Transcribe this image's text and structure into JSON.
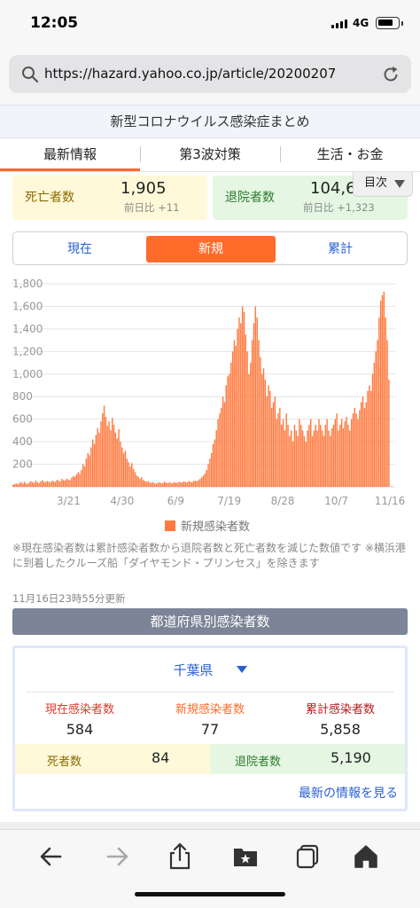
{
  "status_bar": {
    "time": "12:05",
    "network": "4G",
    "battery_level": 0.8
  },
  "browser": {
    "url": "https://hazard.yahoo.co.jp/article/20200207"
  },
  "page": {
    "title": "新型コロナウイルス感染症まとめ"
  },
  "tabs": [
    {
      "label": "最新情報",
      "active": true
    },
    {
      "label": "第3波対策",
      "active": false
    },
    {
      "label": "生活・お金",
      "active": false
    }
  ],
  "toc_button": {
    "label": "目次"
  },
  "summary": {
    "deaths": {
      "label": "死亡者数",
      "value": "1,905",
      "delta": "前日比 +11"
    },
    "recovered": {
      "label": "退院者数",
      "value": "104,65",
      "delta": "前日比 +1,323"
    }
  },
  "segment": {
    "options": [
      "現在",
      "新規",
      "累計"
    ],
    "selected": "新規"
  },
  "chart_data": {
    "type": "bar",
    "title": "",
    "ylim": [
      0,
      1800
    ],
    "yticks": [
      "1,800",
      "1,600",
      "1,400",
      "1,200",
      "1,000",
      "800",
      "600",
      "400",
      "200"
    ],
    "x_tick_labels": [
      "3/21",
      "4/30",
      "6/9",
      "7/19",
      "8/28",
      "10/7",
      "11/16"
    ],
    "x_start": "2020-02-08",
    "x_end": "2020-11-16",
    "series": [
      {
        "name": "新規感染者数",
        "color": "#ff7a40",
        "values": [
          18,
          25,
          30,
          22,
          35,
          40,
          28,
          45,
          30,
          25,
          38,
          50,
          42,
          35,
          55,
          40,
          32,
          48,
          60,
          45,
          38,
          52,
          45,
          40,
          55,
          48,
          42,
          62,
          55,
          48,
          70,
          60,
          55,
          72,
          65,
          58,
          80,
          95,
          88,
          110,
          130,
          115,
          150,
          200,
          180,
          250,
          300,
          280,
          350,
          420,
          380,
          460,
          520,
          480,
          580,
          650,
          720,
          620,
          540,
          580,
          500,
          610,
          550,
          480,
          430,
          510,
          400,
          350,
          300,
          320,
          250,
          220,
          180,
          210,
          160,
          130,
          100,
          90,
          70,
          85,
          60,
          52,
          45,
          50,
          38,
          35,
          42,
          30,
          28,
          35,
          40,
          32,
          30,
          45,
          38,
          32,
          40,
          35,
          30,
          42,
          38,
          35,
          45,
          40,
          38,
          48,
          42,
          38,
          50,
          45,
          40,
          52,
          55,
          48,
          60,
          70,
          85,
          100,
          120,
          150,
          200,
          250,
          300,
          380,
          420,
          500,
          600,
          650,
          700,
          800,
          750,
          900,
          980,
          1000,
          1100,
          1200,
          1300,
          1250,
          1400,
          1500,
          1450,
          1600,
          1550,
          1350,
          1200,
          1000,
          1100,
          1300,
          1450,
          1600,
          1500,
          1300,
          1150,
          1000,
          1050,
          950,
          800,
          900,
          850,
          700,
          750,
          800,
          600,
          650,
          700,
          550,
          600,
          500,
          650,
          550,
          450,
          500,
          400,
          550,
          500,
          450,
          600,
          550,
          500,
          450,
          400,
          500,
          550,
          600,
          450,
          500,
          550,
          500,
          600,
          550,
          500,
          450,
          550,
          600,
          500,
          450,
          520,
          550,
          600,
          650,
          500,
          550,
          600,
          520,
          580,
          620,
          550,
          500,
          600,
          650,
          700,
          650,
          600,
          680,
          750,
          800,
          700,
          750,
          850,
          900,
          850,
          1000,
          1100,
          1200,
          1300,
          1500,
          1650,
          1700,
          1730,
          1500,
          1300,
          950
        ]
      }
    ],
    "legend": {
      "entries": [
        "新規感染者数"
      ],
      "position": "bottom"
    }
  },
  "notes": {
    "text": "※現在感染者数は累計感染者数から退院者数と死亡者数を減じた数値です ※横浜港に到着したクルーズ船「ダイヤモンド・プリンセス」を除きます",
    "updated": "11月16日23時55分更新"
  },
  "prefecture": {
    "header": "都道府県別感染者数",
    "selected": "千葉県",
    "columns": [
      {
        "label": "現在感染者数",
        "value": "584"
      },
      {
        "label": "新規感染者数",
        "value": "77"
      },
      {
        "label": "累計感染者数",
        "value": "5,858"
      }
    ],
    "deaths": {
      "label": "死者数",
      "value": "84"
    },
    "recovered": {
      "label": "退院者数",
      "value": "5,190"
    },
    "link": "最新の情報を見る"
  },
  "toolbar": {
    "icons": [
      "back-arrow-icon",
      "forward-arrow-icon",
      "share-icon",
      "bookmarks-icon",
      "tabs-icon",
      "home-icon"
    ]
  }
}
